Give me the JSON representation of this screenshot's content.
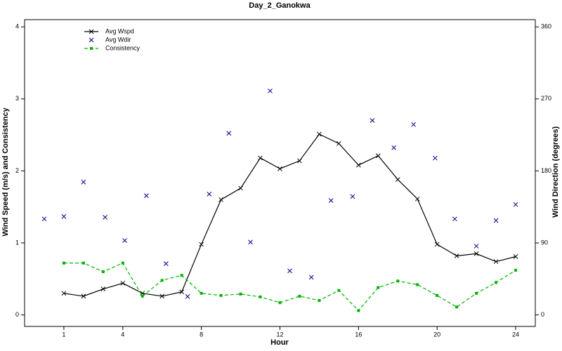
{
  "chart_data": {
    "type": "line",
    "title": "Day_2_Ganokwa",
    "x_label": "Hour",
    "y_label": "Wind Speed (m/s) and Consistency",
    "y2_label": "Wind Direction (degrees)",
    "x": [
      1,
      2,
      3,
      4,
      5,
      6,
      7,
      8,
      9,
      10,
      11,
      12,
      13,
      14,
      15,
      16,
      17,
      18,
      19,
      20,
      21,
      22,
      23,
      24
    ],
    "series": [
      {
        "name": "Avg Wspd",
        "color": "#000000",
        "marker": "x",
        "linestyle": "solid",
        "values": [
          0.3,
          0.26,
          0.36,
          0.44,
          0.3,
          0.26,
          0.32,
          0.98,
          1.6,
          1.76,
          2.18,
          2.03,
          2.14,
          2.51,
          2.38,
          2.08,
          2.21,
          1.88,
          1.61,
          0.98,
          0.82,
          0.85,
          0.74,
          0.81
        ]
      },
      {
        "name": "Avg Wdir",
        "color": "#00008b",
        "marker": "x",
        "linestyle": "none",
        "axis": "y2",
        "x": [
          0.0,
          1.0,
          2.0,
          3.1,
          4.1,
          5.2,
          6.2,
          7.3,
          8.4,
          9.4,
          10.5,
          11.5,
          12.5,
          13.6,
          14.6,
          15.7,
          16.7,
          17.8,
          18.8,
          19.9,
          20.9,
          22.0,
          23.0,
          24.0
        ],
        "values": [
          120,
          123,
          166,
          122,
          93,
          149,
          64,
          23,
          151,
          227,
          91,
          280,
          55,
          47,
          143,
          148,
          243,
          209,
          238,
          196,
          120,
          86,
          118,
          138
        ]
      },
      {
        "name": "Consistency",
        "color": "#00b400",
        "marker": "square",
        "linestyle": "dashed",
        "values": [
          0.72,
          0.72,
          0.6,
          0.72,
          0.26,
          0.48,
          0.55,
          0.3,
          0.27,
          0.29,
          0.25,
          0.17,
          0.26,
          0.2,
          0.34,
          0.06,
          0.38,
          0.47,
          0.42,
          0.27,
          0.11,
          0.3,
          0.45,
          0.62
        ]
      }
    ],
    "xlim": [
      -1,
      25
    ],
    "xticks": [
      1,
      4,
      8,
      12,
      16,
      20,
      24
    ],
    "ylim": [
      -0.16,
      4.1
    ],
    "yticks": [
      0,
      1,
      2,
      3,
      4
    ],
    "y2lim": [
      -14.4,
      369
    ],
    "y2ticks": [
      0,
      90,
      180,
      270,
      360
    ],
    "legend": "upper left"
  }
}
